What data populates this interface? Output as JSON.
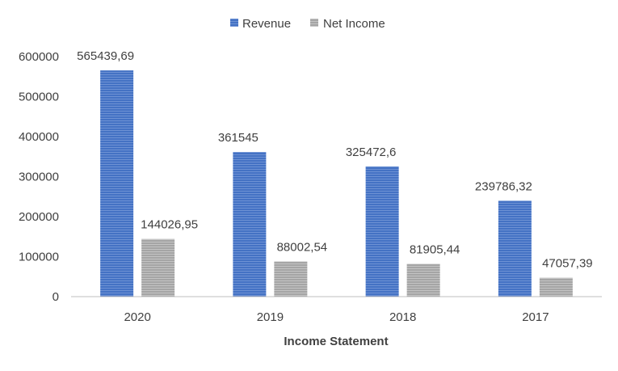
{
  "chart_data": {
    "type": "bar",
    "title": "",
    "xlabel": "Income Statement",
    "ylabel": "",
    "categories": [
      "2020",
      "2019",
      "2018",
      "2017"
    ],
    "series": [
      {
        "name": "Revenue",
        "color": "#4472C4",
        "values": [
          565439.69,
          361545,
          325472.6,
          239786.32
        ],
        "labels": [
          "565439,69",
          "361545",
          "325472,6",
          "239786,32"
        ]
      },
      {
        "name": "Net Income",
        "color": "#A5A5A5",
        "values": [
          144026.95,
          88002.54,
          81905.44,
          47057.39
        ],
        "labels": [
          "144026,95",
          "88002,54",
          "81905,44",
          "47057,39"
        ]
      }
    ],
    "ylim": [
      0,
      600000
    ],
    "yticks": [
      "0",
      "100000",
      "200000",
      "300000",
      "400000",
      "500000",
      "600000"
    ],
    "grid": false,
    "legend": "top-center"
  }
}
